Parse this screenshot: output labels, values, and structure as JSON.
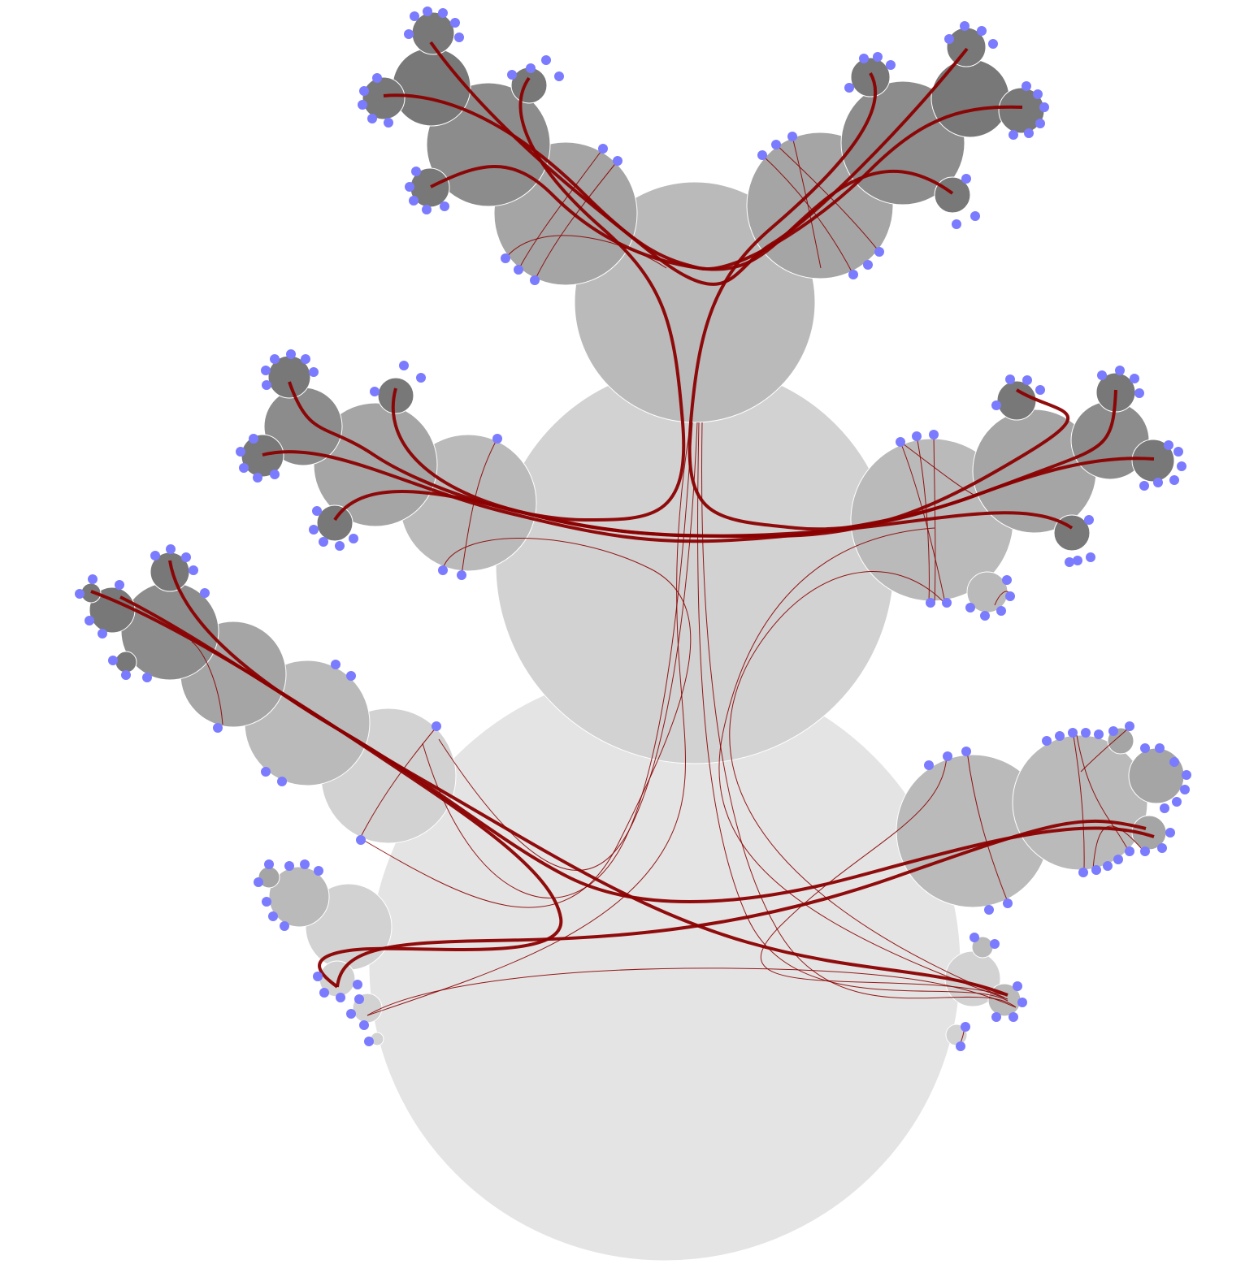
{
  "diagram": {
    "type": "hierarchical edge bundling over nested circle tree",
    "colors": {
      "background": "#ffffff",
      "level_fills": [
        "#e4e4e4",
        "#d2d2d2",
        "#bababa",
        "#a5a5a5",
        "#8c8c8c",
        "#787878"
      ],
      "circle_stroke": "#ffffff",
      "edge": "#8b0000",
      "leaf_node": "#7b7bff"
    },
    "visible_text": []
  }
}
